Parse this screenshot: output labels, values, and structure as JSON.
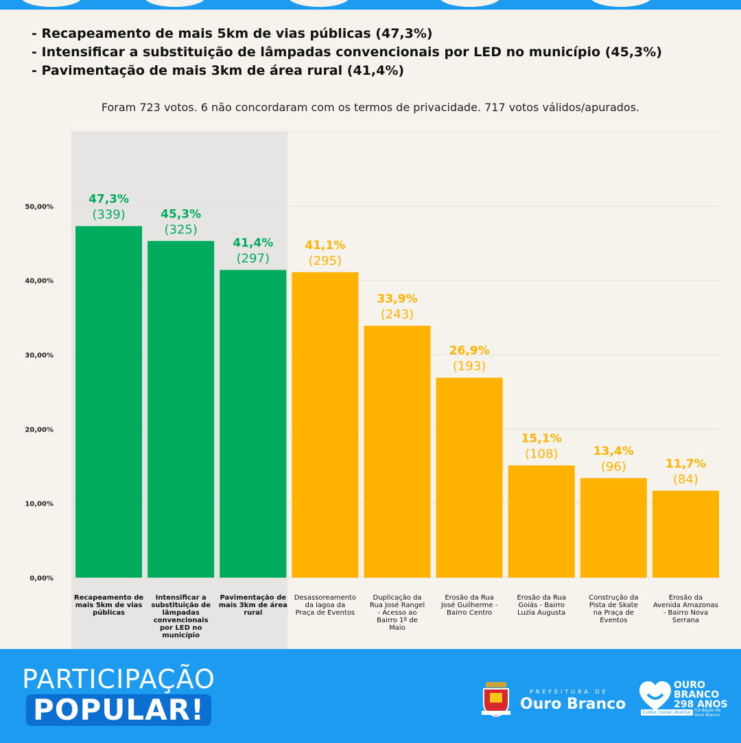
{
  "bullets": [
    "- Recapeamento de mais 5km de vias públicas (47,3%)",
    "- Intensificar a substituição de lâmpadas convencionais por LED no município (45,3%)",
    "- Pavimentação de mais 3km de área rural (41,4%)"
  ],
  "summary": "Foram 723 votos. 6 não concordaram com os termos de privacidade. 717 votos válidos/apurados.",
  "colors": {
    "winner": "#00ac5c",
    "other": "#ffb300",
    "highlight_bg": "#e6e5e3",
    "grid": "#e4e1dd",
    "footer_bg": "#1d9bf0"
  },
  "chart_data": {
    "type": "bar",
    "categories": [
      "Recapeamento de mais 5km de vias públicas",
      "Intensificar a substituição de lâmpadas convencionais por LED no município",
      "Pavimentação de mais 3km de área rural",
      "Desassoreamento da lagoa da Praça de Eventos",
      "Duplicação da Rua José Rangel - Acesso ao Bairro 1º de Maio",
      "Erosão da Rua José Guilherme - Bairro Centro",
      "Erosão da Rua Goiás - Bairro Luzia Augusta",
      "Construção da Pista de Skate na Praça de Eventos",
      "Erosão da Avenida Amazonas - Bairro Nova Serrana"
    ],
    "values": [
      47.3,
      45.3,
      41.4,
      41.1,
      33.9,
      26.9,
      15.1,
      13.4,
      11.7
    ],
    "percent_labels": [
      "47,3%",
      "45,3%",
      "41,4%",
      "41,1%",
      "33,9%",
      "26,9%",
      "15,1%",
      "13,4%",
      "11,7%"
    ],
    "votes": [
      "(339)",
      "(325)",
      "(297)",
      "(295)",
      "(243)",
      "(193)",
      "(108)",
      "(96)",
      "(84)"
    ],
    "winners_count": 3,
    "yticks": [
      "0,00%",
      "10,00%",
      "20,00%",
      "30,00%",
      "40,00%",
      "50,00%"
    ],
    "ylim": [
      0,
      60
    ],
    "grid": true
  },
  "footer": {
    "title_line1": "PARTICIPAÇÃO",
    "title_line2": "POPULAR!",
    "pref_small": "PREFEITURA DE",
    "pref_big": "Ouro Branco",
    "ob_lines": [
      "OURO",
      "BRANCO",
      "298 ANOS"
    ],
    "ob_tag": "Cuidar, Inovar, Avançar",
    "ob_fund": [
      "Fundação de",
      "Ouro Branco"
    ]
  }
}
